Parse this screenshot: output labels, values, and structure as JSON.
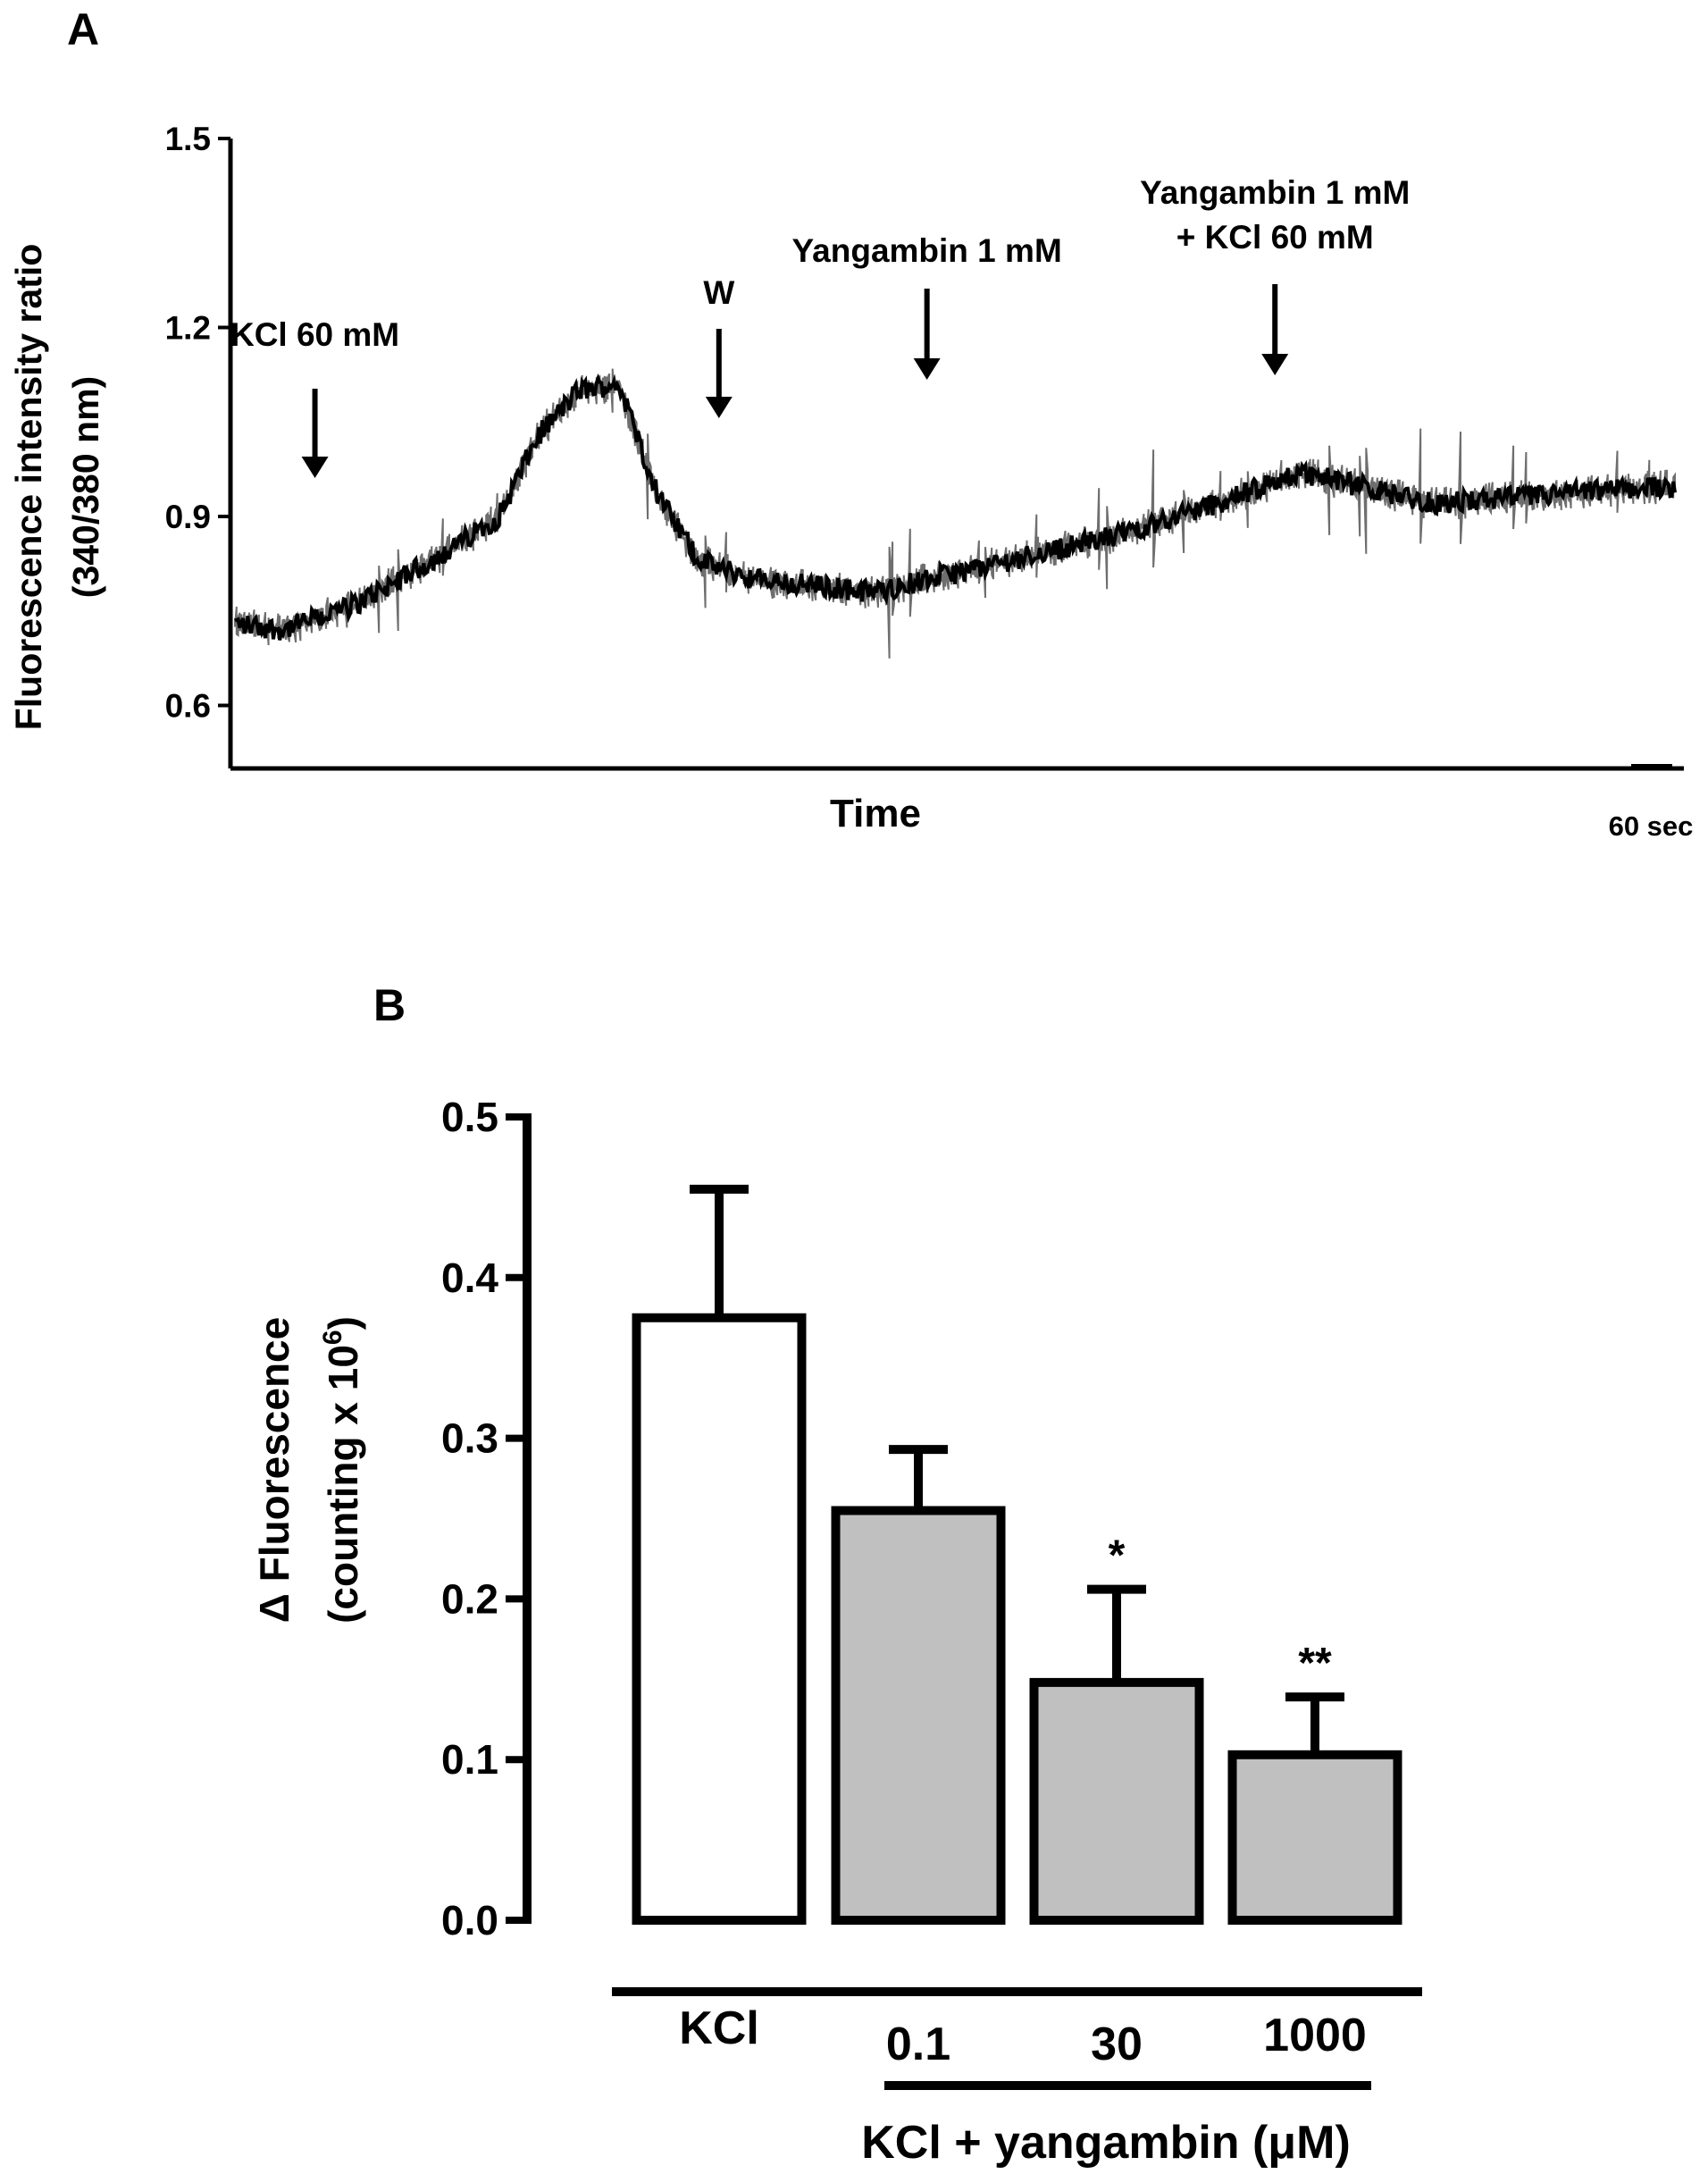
{
  "panel_a": {
    "label": "A",
    "chart_data": {
      "type": "line",
      "ylabel_line1": "Fluorescence intensity ratio",
      "ylabel_line2": "(340/380 nm)",
      "xlabel": "Time",
      "ylim": [
        0.5,
        1.5
      ],
      "yticks": [
        0.6,
        0.9,
        1.2,
        1.5
      ],
      "ytick_labels": [
        "0.6",
        "0.9",
        "1.2",
        "1.5"
      ],
      "time_range_sec": [
        0,
        1800
      ],
      "scale_bar": {
        "label": "60 sec",
        "duration_sec": 60
      },
      "trace_keypoints": [
        {
          "t": 0,
          "ratio": 0.73
        },
        {
          "t": 60,
          "ratio": 0.72
        },
        {
          "t": 150,
          "ratio": 0.76
        },
        {
          "t": 260,
          "ratio": 0.84
        },
        {
          "t": 330,
          "ratio": 0.9
        },
        {
          "t": 380,
          "ratio": 1.03
        },
        {
          "t": 430,
          "ratio": 1.1
        },
        {
          "t": 480,
          "ratio": 1.11
        },
        {
          "t": 530,
          "ratio": 0.93
        },
        {
          "t": 580,
          "ratio": 0.83
        },
        {
          "t": 650,
          "ratio": 0.8
        },
        {
          "t": 800,
          "ratio": 0.78
        },
        {
          "t": 900,
          "ratio": 0.81
        },
        {
          "t": 1000,
          "ratio": 0.84
        },
        {
          "t": 1100,
          "ratio": 0.87
        },
        {
          "t": 1250,
          "ratio": 0.93
        },
        {
          "t": 1330,
          "ratio": 0.97
        },
        {
          "t": 1400,
          "ratio": 0.95
        },
        {
          "t": 1500,
          "ratio": 0.92
        },
        {
          "t": 1600,
          "ratio": 0.93
        },
        {
          "t": 1700,
          "ratio": 0.94
        },
        {
          "t": 1800,
          "ratio": 0.95
        }
      ],
      "annotations": [
        {
          "lines": [
            "KCl 60 mM"
          ],
          "t": 100
        },
        {
          "lines": [
            "W"
          ],
          "t": 605
        },
        {
          "lines": [
            "Yangambin 1 mM"
          ],
          "t": 865
        },
        {
          "lines": [
            "Yangambin 1 mM",
            "+ KCl 60 mM"
          ],
          "t": 1300
        }
      ]
    }
  },
  "panel_b": {
    "label": "B",
    "chart_data": {
      "type": "bar",
      "ylabel_line1": "Δ Fluorescence",
      "ylabel_line2_prefix": "(counting x 10",
      "ylabel_line2_superscript": "6",
      "ylabel_line2_suffix": ")",
      "ylim": [
        0,
        0.5
      ],
      "yticks": [
        0.0,
        0.1,
        0.2,
        0.3,
        0.4,
        0.5
      ],
      "ytick_labels": [
        "0.0",
        "0.1",
        "0.2",
        "0.3",
        "0.4",
        "0.5"
      ],
      "categories": [
        "KCl",
        "0.1",
        "30",
        "1000"
      ],
      "values": [
        0.375,
        0.255,
        0.148,
        0.103
      ],
      "errors": [
        0.08,
        0.038,
        0.058,
        0.036
      ],
      "significance": [
        "",
        "",
        "*",
        "**"
      ],
      "fills": [
        "#ffffff",
        "#c0c0c0",
        "#c0c0c0",
        "#c0c0c0"
      ],
      "group_label": "KCl + yangambin (μM)"
    }
  }
}
